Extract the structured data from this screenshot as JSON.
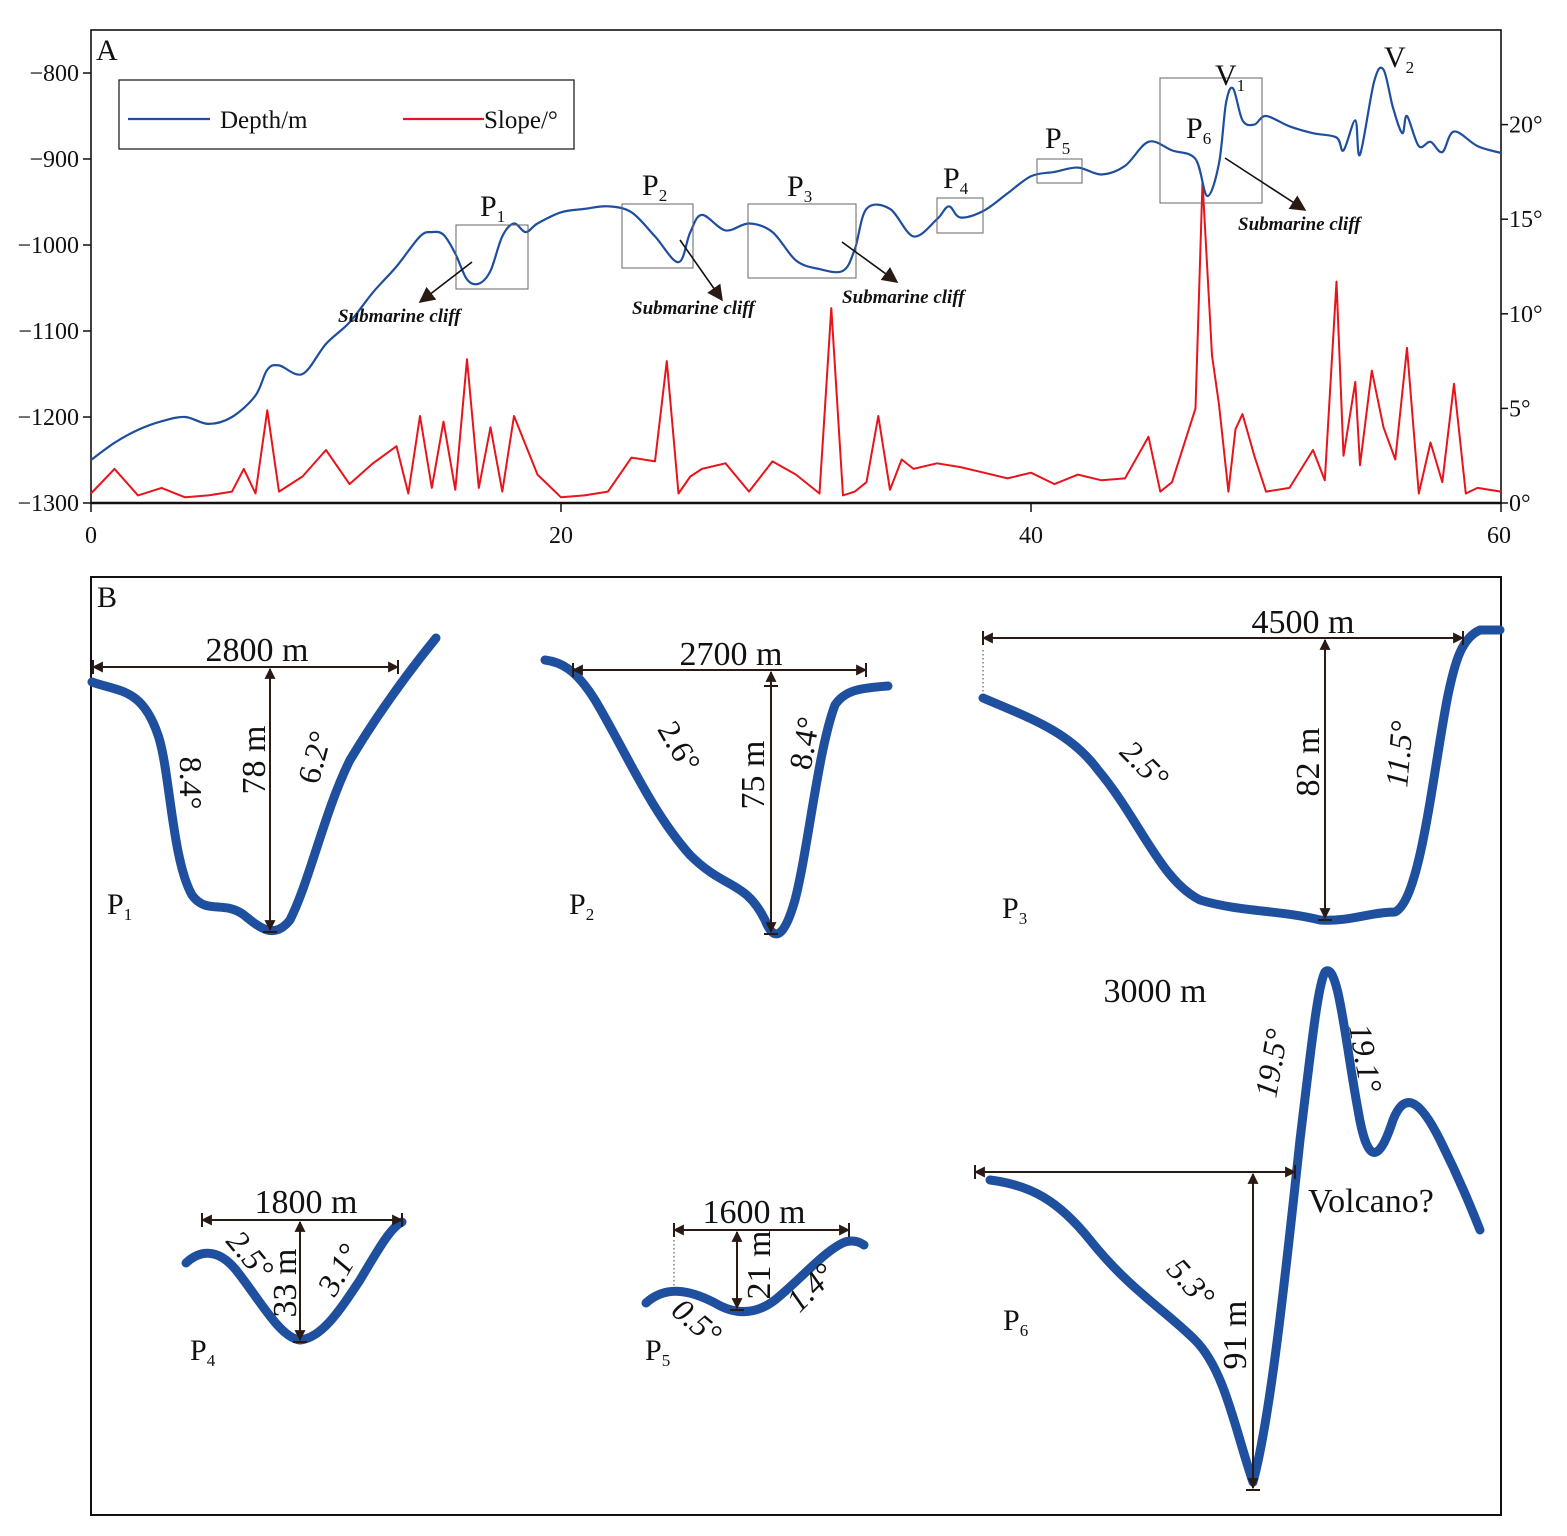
{
  "colors": {
    "depth": "#1f4e9e",
    "slope": "#e8141b",
    "profile": "#1f4f9f",
    "axis": "#111111",
    "arrow": "#2a1a14"
  },
  "panel_a": {
    "letter": "A",
    "cliff_label": "Submarine cliff",
    "legend": {
      "depth": "Depth/m",
      "slope": "Slope/°"
    },
    "boxes": [
      {
        "main": "P",
        "sub": "1"
      },
      {
        "main": "P",
        "sub": "2"
      },
      {
        "main": "P",
        "sub": "3"
      },
      {
        "main": "P",
        "sub": "4"
      },
      {
        "main": "P",
        "sub": "5"
      },
      {
        "main": "P",
        "sub": "6"
      },
      {
        "main": "V",
        "sub": "1"
      },
      {
        "main": "V",
        "sub": "2"
      }
    ]
  },
  "chart_data": {
    "type": "line",
    "title": "",
    "xlabel": "",
    "xlim": [
      0,
      60
    ],
    "x_ticks": [
      "0",
      "20",
      "40",
      "60"
    ],
    "y_left": {
      "label": "",
      "lim": [
        -1300,
        -750
      ],
      "ticks": [
        "−800",
        "−900",
        "−1000",
        "−1100",
        "−1200",
        "−1300"
      ]
    },
    "y_right": {
      "label": "",
      "lim": [
        0,
        25
      ],
      "ticks": [
        "0°",
        "5°",
        "10°",
        "15°",
        "20°"
      ]
    },
    "legend_position": "top-left",
    "series": [
      {
        "name": "Depth/m",
        "axis": "left",
        "x": [
          0,
          1,
          2,
          3,
          4,
          5,
          6,
          7,
          7.5,
          8,
          9,
          10,
          11,
          12,
          13,
          14,
          14.5,
          15,
          15.5,
          16,
          16.5,
          17,
          17.5,
          18,
          18.5,
          19,
          20,
          21,
          22,
          23,
          24,
          25,
          25.5,
          26,
          27,
          28,
          29,
          30,
          31,
          32,
          32.5,
          33,
          34,
          35,
          36,
          36.5,
          37,
          38,
          39,
          40,
          41,
          42,
          43,
          44,
          45,
          46,
          47,
          47.5,
          48,
          48.3,
          48.6,
          49,
          49.5,
          50,
          51,
          52,
          53,
          53.3,
          53.8,
          54,
          54.6,
          55,
          55.4,
          55.8,
          56,
          56.5,
          57,
          57.5,
          58,
          59,
          60
        ],
        "y": [
          -1250,
          -1230,
          -1215,
          -1205,
          -1200,
          -1208,
          -1200,
          -1175,
          -1145,
          -1140,
          -1150,
          -1115,
          -1090,
          -1055,
          -1025,
          -990,
          -985,
          -988,
          -1010,
          -1040,
          -1045,
          -1030,
          -990,
          -975,
          -985,
          -975,
          -962,
          -958,
          -955,
          -962,
          -990,
          -1020,
          -985,
          -965,
          -983,
          -975,
          -985,
          -1018,
          -1028,
          -1030,
          -1005,
          -958,
          -958,
          -990,
          -970,
          -955,
          -968,
          -960,
          -940,
          -920,
          -915,
          -910,
          -918,
          -908,
          -880,
          -890,
          -900,
          -943,
          -905,
          -835,
          -818,
          -855,
          -860,
          -850,
          -862,
          -870,
          -875,
          -890,
          -855,
          -895,
          -810,
          -796,
          -840,
          -870,
          -850,
          -885,
          -880,
          -892,
          -868,
          -885,
          -893
        ]
      },
      {
        "name": "Slope/°",
        "axis": "right",
        "x": [
          0,
          1,
          2,
          3,
          4,
          5,
          6,
          6.5,
          7,
          7.5,
          8,
          9,
          10,
          11,
          12,
          13,
          13.5,
          14,
          14.5,
          15,
          15.5,
          16,
          16.5,
          17,
          17.5,
          18,
          19,
          20,
          21,
          22,
          23,
          24,
          24.5,
          25,
          25.5,
          26,
          27,
          28,
          29,
          30,
          31,
          31.5,
          32,
          32.5,
          33,
          33.5,
          34,
          34.5,
          35,
          36,
          37,
          38,
          39,
          40,
          41,
          42,
          43,
          44,
          45,
          45.5,
          46,
          47,
          47.3,
          47.7,
          48,
          48.4,
          48.7,
          49,
          49.5,
          50,
          51,
          52,
          52.5,
          53,
          53.3,
          53.8,
          54,
          54.5,
          55,
          55.5,
          56,
          56.5,
          57,
          57.5,
          58,
          58.5,
          59,
          60
        ],
        "y": [
          0.5,
          1.8,
          0.4,
          0.8,
          0.3,
          0.4,
          0.6,
          1.8,
          0.5,
          4.9,
          0.6,
          1.4,
          2.8,
          1.0,
          2.1,
          3.0,
          0.5,
          4.6,
          0.8,
          4.3,
          0.7,
          7.6,
          0.8,
          4.0,
          0.6,
          4.6,
          1.5,
          0.3,
          0.4,
          0.6,
          2.4,
          2.2,
          7.5,
          0.5,
          1.4,
          1.8,
          2.1,
          0.6,
          2.2,
          1.5,
          0.5,
          10.3,
          0.4,
          0.6,
          1.1,
          4.6,
          0.7,
          2.3,
          1.8,
          2.1,
          1.9,
          1.6,
          1.3,
          1.6,
          1.0,
          1.5,
          1.2,
          1.3,
          3.5,
          0.6,
          1.1,
          5.0,
          17.0,
          7.8,
          5.2,
          0.6,
          3.9,
          4.7,
          2.5,
          0.6,
          0.8,
          2.8,
          1.2,
          11.7,
          2.5,
          6.4,
          2.0,
          7.0,
          4.0,
          2.3,
          8.2,
          0.5,
          3.2,
          1.1,
          6.3,
          0.5,
          0.8,
          0.6
        ]
      }
    ]
  },
  "panel_b": {
    "letter": "B",
    "profiles": [
      {
        "name": "P",
        "sub": "1",
        "width": "2800 m",
        "depth": "78 m",
        "left_angle": "8.4°",
        "right_angle": "6.2°"
      },
      {
        "name": "P",
        "sub": "2",
        "width": "2700 m",
        "depth": "75 m",
        "left_angle": "2.6°",
        "right_angle": "8.4°"
      },
      {
        "name": "P",
        "sub": "3",
        "width": "4500 m",
        "depth": "82 m",
        "left_angle": "2.5°",
        "right_angle": "11.5°"
      },
      {
        "name": "P",
        "sub": "4",
        "width": "1800 m",
        "depth": "33 m",
        "left_angle": "2.5°",
        "right_angle": "3.1°"
      },
      {
        "name": "P",
        "sub": "5",
        "width": "1600 m",
        "depth": "21 m",
        "left_angle": "0.5°",
        "right_angle": "1.4°"
      },
      {
        "name": "P",
        "sub": "6",
        "width": "3000 m",
        "depth": "91 m",
        "left_angle": "5.3°",
        "right_angle": "19.5°",
        "extra_angle": "19.1°",
        "note": "Volcano?"
      }
    ]
  }
}
